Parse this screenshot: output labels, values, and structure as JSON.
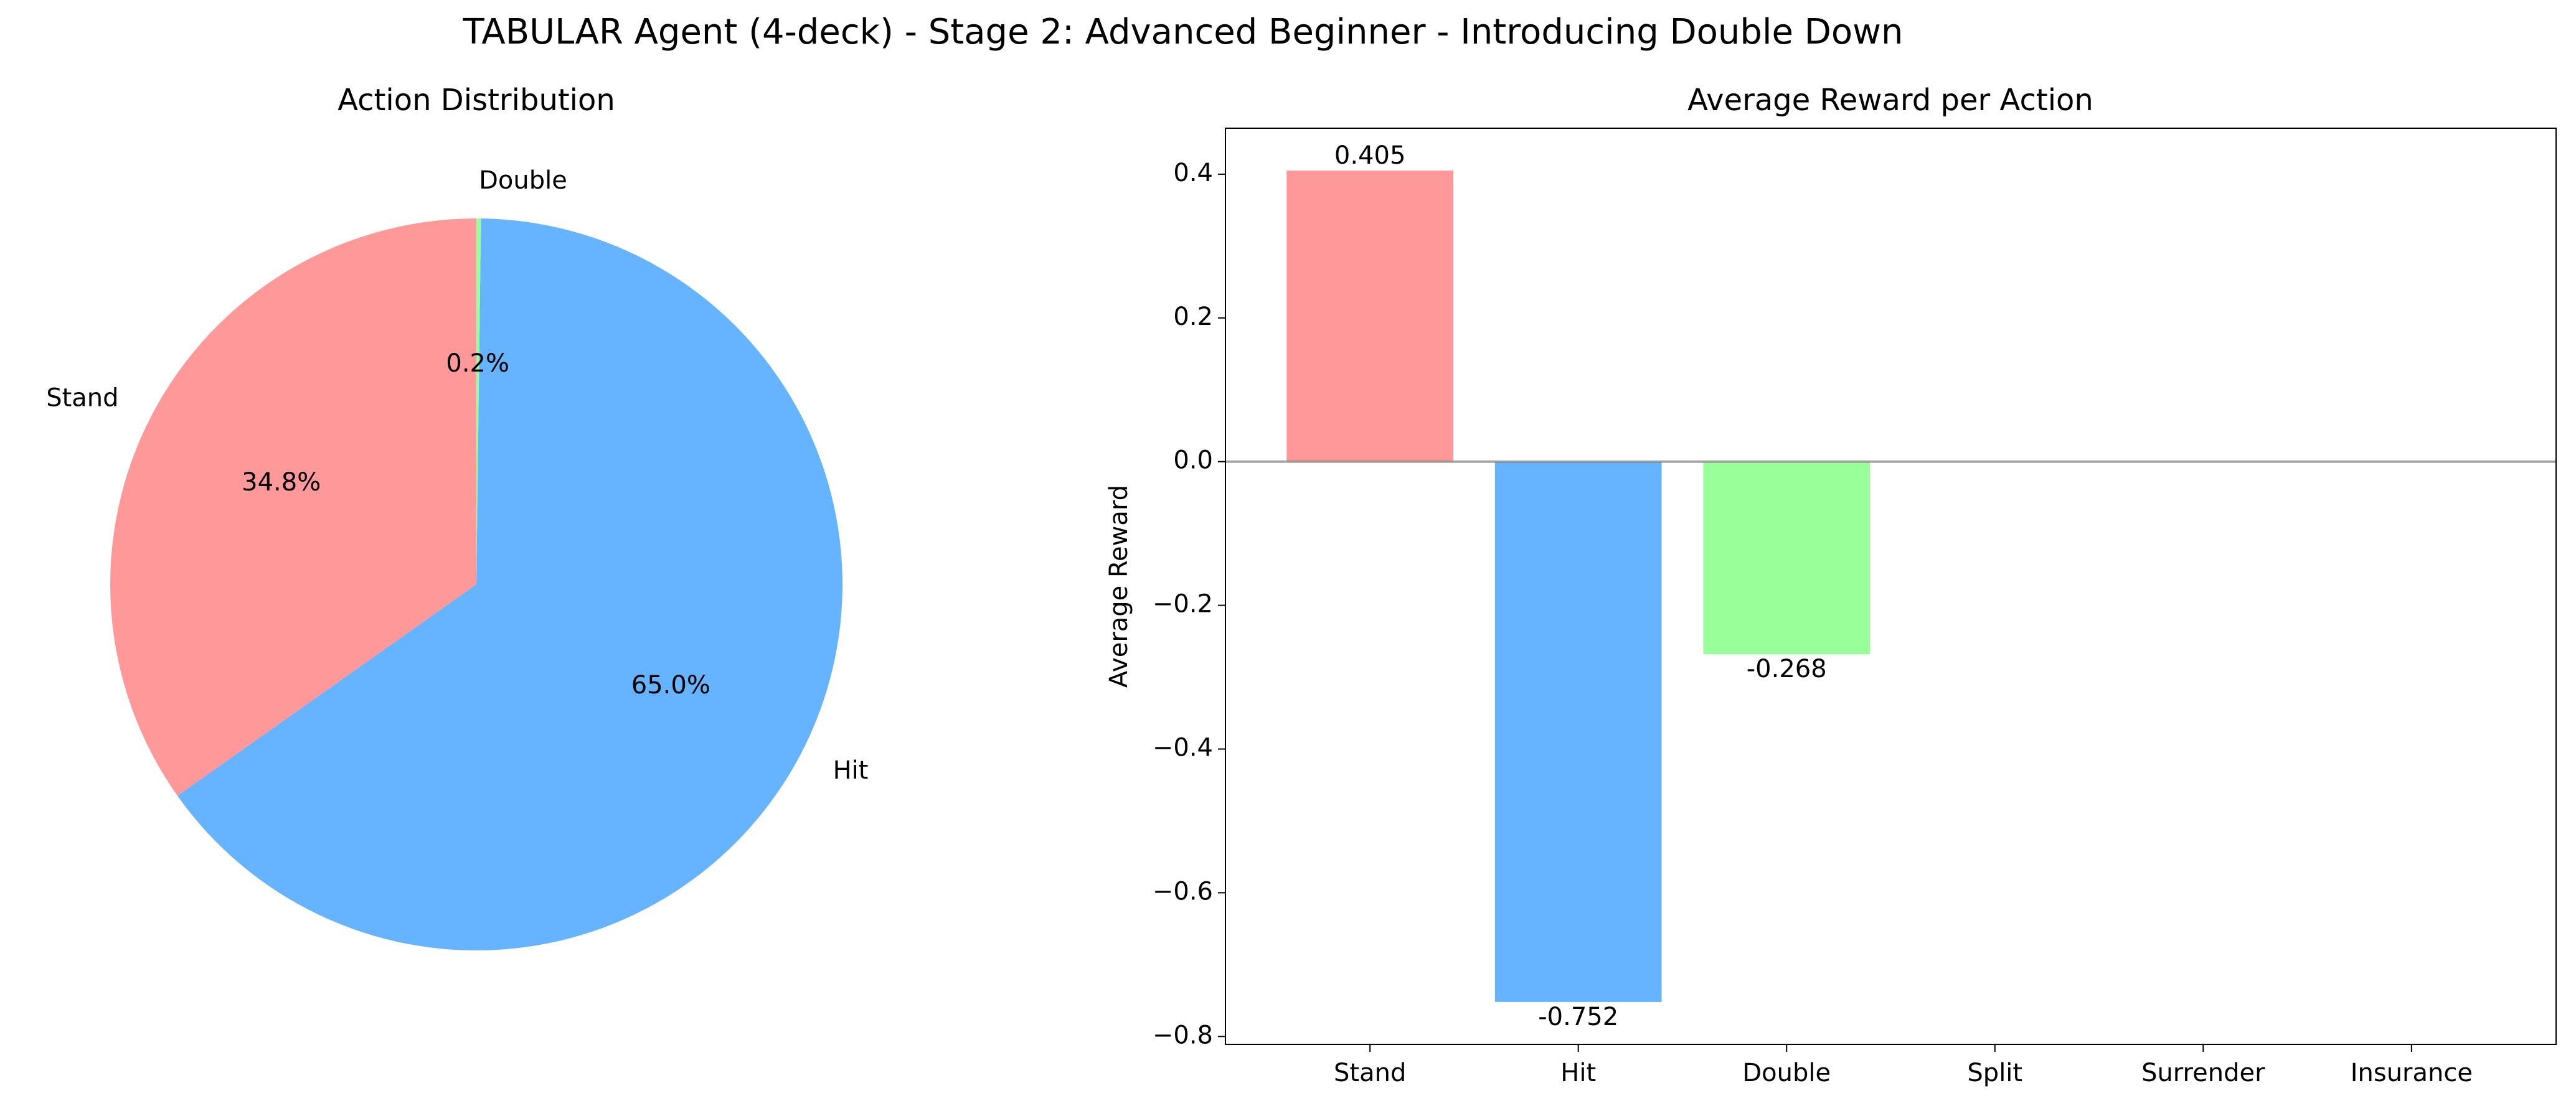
{
  "title": "TABULAR Agent (4-deck) - Stage 2: Advanced Beginner - Introducing Double Down",
  "chart_data": [
    {
      "type": "pie",
      "title": "Action Distribution",
      "categories": [
        "Stand",
        "Hit",
        "Double"
      ],
      "values": [
        34.8,
        65.0,
        0.2
      ],
      "value_labels": [
        "34.8%",
        "65.0%",
        "0.2%"
      ],
      "colors": [
        "#ff9999",
        "#66b3ff",
        "#99ff99"
      ],
      "start_angle": 90
    },
    {
      "type": "bar",
      "title": "Average Reward per Action",
      "ylabel": "Average Reward",
      "categories": [
        "Stand",
        "Hit",
        "Double",
        "Split",
        "Surrender",
        "Insurance"
      ],
      "values": [
        0.405,
        -0.752,
        -0.268,
        null,
        null,
        null
      ],
      "colors": [
        "#ff9999",
        "#66b3ff",
        "#99ff99"
      ],
      "ylim": [
        -0.811,
        0.464
      ],
      "yticks": [
        {
          "value": -0.8,
          "label": "−0.8"
        },
        {
          "value": -0.6,
          "label": "−0.6"
        },
        {
          "value": -0.4,
          "label": "−0.4"
        },
        {
          "value": -0.2,
          "label": "−0.2"
        },
        {
          "value": 0.0,
          "label": "0.0"
        },
        {
          "value": 0.2,
          "label": "0.2"
        },
        {
          "value": 0.4,
          "label": "0.4"
        }
      ],
      "zero_line": true
    }
  ]
}
